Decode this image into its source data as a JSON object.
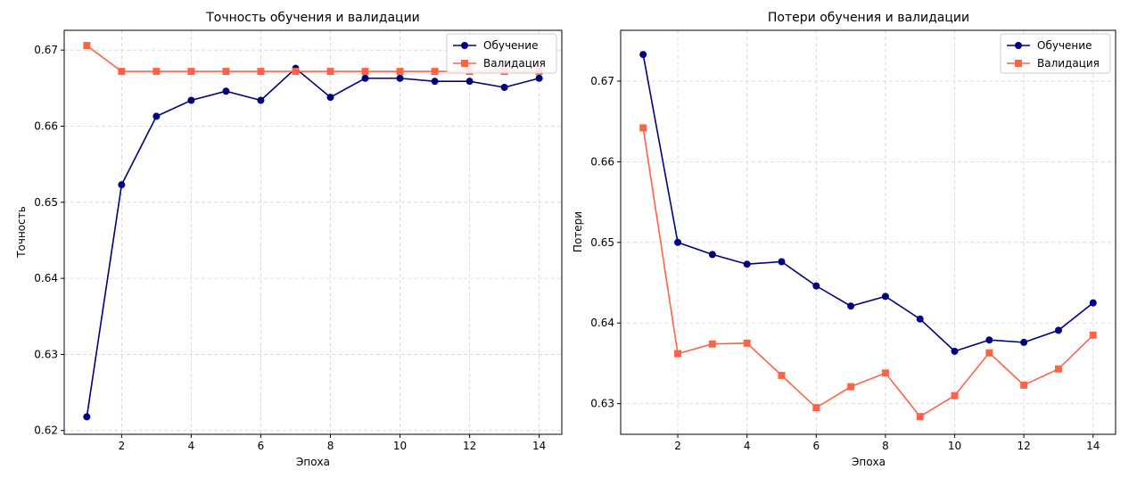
{
  "chart_data": [
    {
      "type": "line",
      "title": "Точность обучения и валидации",
      "xlabel": "Эпоха",
      "ylabel": "Точность",
      "x": [
        1,
        2,
        3,
        4,
        5,
        6,
        7,
        8,
        9,
        10,
        11,
        12,
        13,
        14
      ],
      "xticks": [
        2,
        4,
        6,
        8,
        10,
        12,
        14
      ],
      "xlim": [
        0.35,
        14.65
      ],
      "yticks": [
        0.62,
        0.63,
        0.64,
        0.65,
        0.66,
        0.67
      ],
      "ytick_labels": [
        "0.62",
        "0.63",
        "0.64",
        "0.65",
        "0.66",
        "0.67"
      ],
      "ylim": [
        0.6195,
        0.6726
      ],
      "grid": true,
      "legend_position": "top-right",
      "series": [
        {
          "name": "Обучение",
          "color": "#000080",
          "marker": "circle",
          "values": [
            0.6218,
            0.6523,
            0.6613,
            0.6634,
            0.6646,
            0.6634,
            0.6676,
            0.6638,
            0.6663,
            0.6663,
            0.6659,
            0.6659,
            0.6651,
            0.6663
          ]
        },
        {
          "name": "Валидация",
          "color": "#ff6347",
          "marker": "square",
          "values": [
            0.6706,
            0.6672,
            0.6672,
            0.6672,
            0.6672,
            0.6672,
            0.6672,
            0.6672,
            0.6672,
            0.6672,
            0.6672,
            0.6672,
            0.6672,
            0.6672
          ]
        }
      ]
    },
    {
      "type": "line",
      "title": "Потери обучения и валидации",
      "xlabel": "Эпоха",
      "ylabel": "Потери",
      "x": [
        1,
        2,
        3,
        4,
        5,
        6,
        7,
        8,
        9,
        10,
        11,
        12,
        13,
        14
      ],
      "xticks": [
        2,
        4,
        6,
        8,
        10,
        12,
        14
      ],
      "xlim": [
        0.35,
        14.65
      ],
      "yticks": [
        0.63,
        0.64,
        0.65,
        0.66,
        0.67
      ],
      "ytick_labels": [
        "0.63",
        "0.64",
        "0.65",
        "0.66",
        "0.67"
      ],
      "ylim": [
        0.6262,
        0.6763
      ],
      "grid": true,
      "legend_position": "top-right",
      "series": [
        {
          "name": "Обучение",
          "color": "#000080",
          "marker": "circle",
          "values": [
            0.6733,
            0.65,
            0.6485,
            0.6473,
            0.6476,
            0.6446,
            0.6421,
            0.6433,
            0.6405,
            0.6365,
            0.6379,
            0.6376,
            0.6391,
            0.6425
          ]
        },
        {
          "name": "Валидация",
          "color": "#ff6347",
          "marker": "square",
          "values": [
            0.6642,
            0.6362,
            0.6374,
            0.6375,
            0.6335,
            0.6295,
            0.6321,
            0.6338,
            0.6284,
            0.631,
            0.6363,
            0.6323,
            0.6343,
            0.6385
          ]
        }
      ]
    }
  ]
}
